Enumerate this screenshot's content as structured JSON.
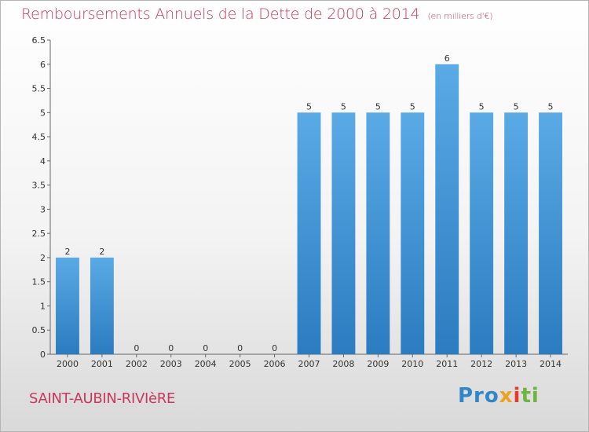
{
  "title": "Remboursements Annuels de la Dette de 2000 à 2014",
  "unit": "(en milliers d'€)",
  "commune": "SAINT-AUBIN-RIVIèRE",
  "logo": {
    "p1": "Pro",
    "p2": "x",
    "p3": "i",
    "p4": "ti",
    "colors": [
      "#2f86c8",
      "#f0a020",
      "#e8392a",
      "#6fb43f"
    ]
  },
  "chart_data": {
    "type": "bar",
    "categories": [
      "2000",
      "2001",
      "2002",
      "2003",
      "2004",
      "2005",
      "2006",
      "2007",
      "2008",
      "2009",
      "2010",
      "2011",
      "2012",
      "2013",
      "2014"
    ],
    "values": [
      2,
      2,
      0,
      0,
      0,
      0,
      0,
      5,
      5,
      5,
      5,
      6,
      5,
      5,
      5
    ],
    "data_labels": [
      "2",
      "2",
      "0",
      "0",
      "0",
      "0",
      "0",
      "5",
      "5",
      "5",
      "5",
      "6",
      "5",
      "5",
      "5"
    ],
    "yticks": [
      0,
      0.5,
      1,
      1.5,
      2,
      2.5,
      3,
      3.5,
      4,
      4.5,
      5,
      5.5,
      6,
      6.5
    ],
    "ytick_labels": [
      "0",
      "0.5",
      "1",
      "1.5",
      "2",
      "2.5",
      "3",
      "3.5",
      "4",
      "4.5",
      "5",
      "5.5",
      "6",
      "6.5"
    ],
    "ylim": [
      0,
      6.5
    ],
    "grid": false,
    "bar_color": "#4a9ad8"
  }
}
